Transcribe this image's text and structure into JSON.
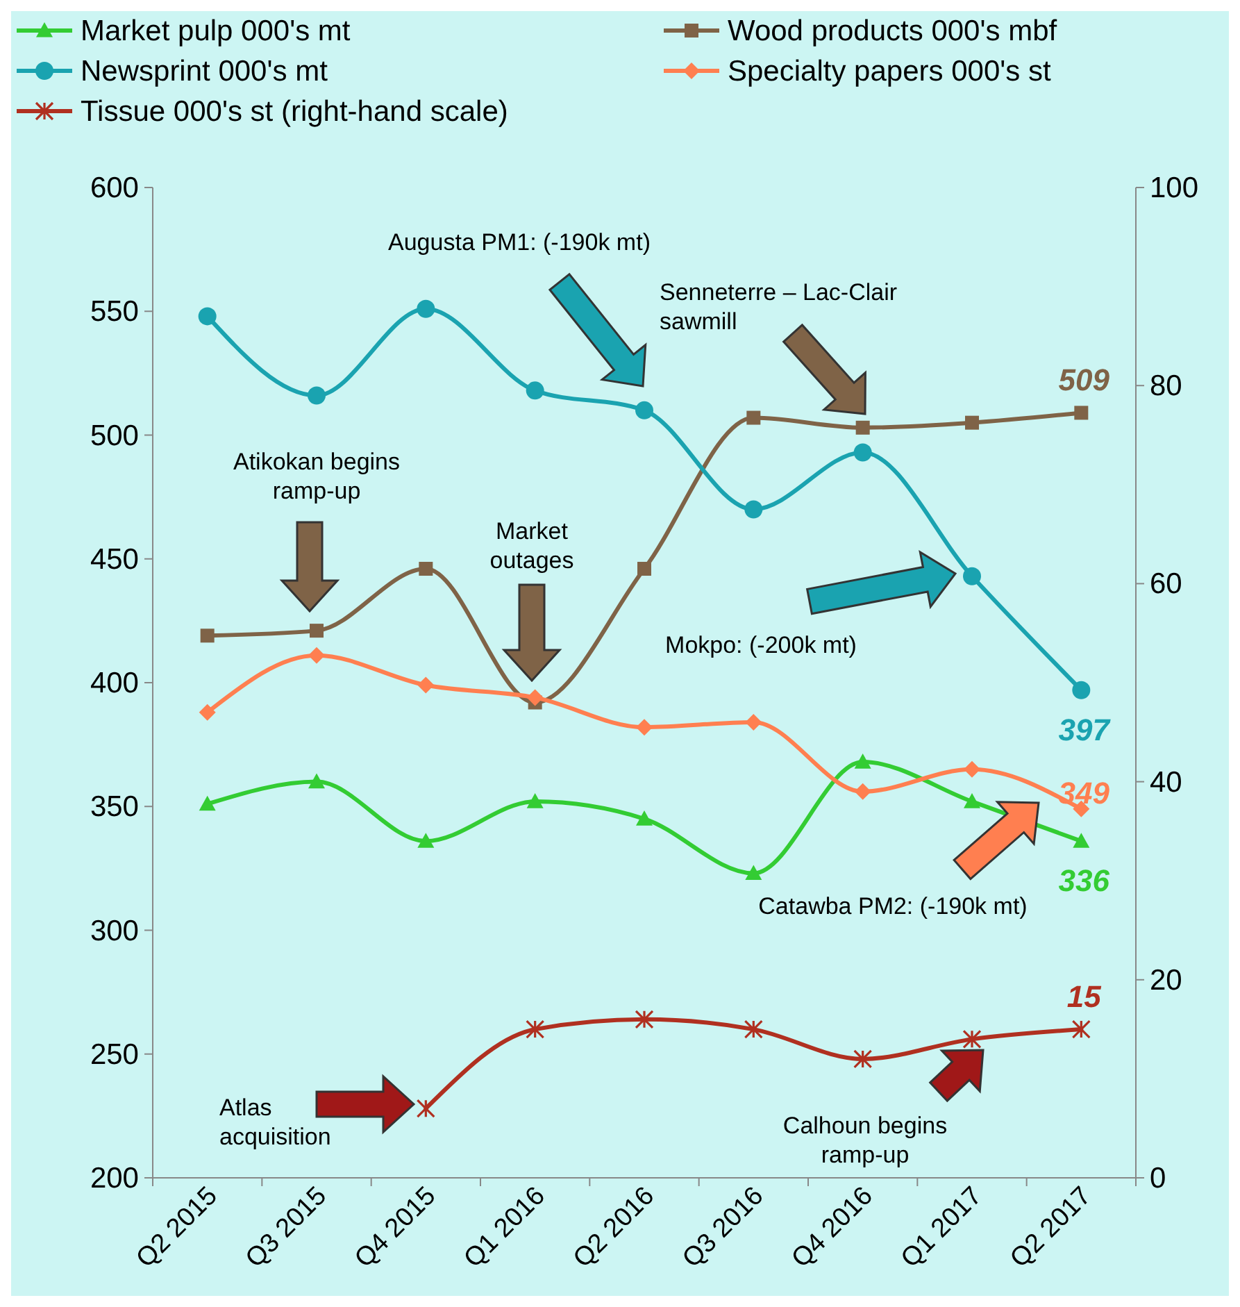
{
  "chart_data": {
    "type": "line",
    "categories": [
      "Q2 2015",
      "Q3 2015",
      "Q4 2015",
      "Q1 2016",
      "Q2 2016",
      "Q3 2016",
      "Q4 2016",
      "Q1 2017",
      "Q2 2017"
    ],
    "ylim": [
      200,
      600
    ],
    "yticks": [
      200,
      250,
      300,
      350,
      400,
      450,
      500,
      550,
      600
    ],
    "y2lim": [
      0,
      100
    ],
    "y2ticks": [
      0,
      20,
      40,
      60,
      80,
      100
    ],
    "legend": "top",
    "grid": false,
    "line_style": "solid",
    "series": [
      {
        "name": "Market pulp 000's mt",
        "color": "#33cc33",
        "marker": "triangle",
        "values": [
          351,
          360,
          336,
          352,
          345,
          323,
          368,
          352,
          336
        ],
        "value_labels": [
          null,
          null,
          null,
          null,
          null,
          null,
          null,
          null,
          "336"
        ]
      },
      {
        "name": "Wood products 000's mbf",
        "color": "#7f6347",
        "marker": "square",
        "values": [
          419,
          421,
          446,
          392,
          446,
          507,
          503,
          505,
          509
        ],
        "value_labels": [
          null,
          null,
          null,
          null,
          null,
          null,
          null,
          null,
          "509"
        ]
      },
      {
        "name": "Newsprint 000's mt",
        "color": "#1aa3b0",
        "marker": "circle",
        "values": [
          548,
          516,
          551,
          518,
          510,
          470,
          493,
          443,
          397
        ],
        "value_labels": [
          null,
          null,
          null,
          null,
          null,
          null,
          null,
          null,
          "397"
        ]
      },
      {
        "name": "Specialty papers 000's st",
        "color": "#ff7f50",
        "marker": "diamond",
        "values": [
          388,
          411,
          399,
          394,
          382,
          384,
          356,
          365,
          349
        ],
        "value_labels": [
          null,
          null,
          null,
          null,
          null,
          null,
          null,
          null,
          "349"
        ]
      },
      {
        "name": "Tissue 000's st (right-hand scale)",
        "color": "#b03020",
        "marker": "cross",
        "axis": "y2",
        "values": [
          null,
          null,
          7,
          15,
          16,
          15,
          12,
          14,
          15
        ],
        "value_labels": [
          null,
          null,
          null,
          null,
          null,
          null,
          null,
          null,
          "15"
        ]
      }
    ],
    "annotations": [
      "Augusta PM1: (-190k mt)",
      "Senneterre – Lac-Clair sawmill",
      "Atikokan begins ramp-up",
      "Market outages",
      "Mokpo: (-200k mt)",
      "Catawba PM2: (-190k mt)",
      "Atlas acquisition",
      "Calhoun begins ramp-up"
    ]
  }
}
